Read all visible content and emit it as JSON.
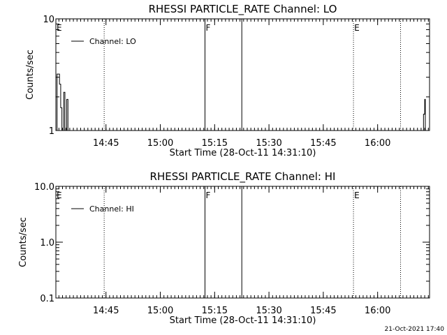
{
  "chart_data": [
    {
      "type": "line",
      "title": "RHESSI PARTICLE_RATE Channel: LO",
      "xlabel": "Start Time (28-Oct-11 14:31:10)",
      "ylabel": "Counts/sec",
      "xlim": [
        "14:31:10",
        "16:14:20"
      ],
      "ylim": [
        1,
        10
      ],
      "yscale": "log",
      "ytick_labels": [
        "1",
        "10"
      ],
      "xtick_labels": [
        "14:45",
        "15:00",
        "15:15",
        "15:30",
        "15:45",
        "16:00"
      ],
      "legend": "top-left",
      "series": [
        {
          "name": "Channel: LO",
          "x": [
            "14:31:10",
            "14:31:30",
            "14:31:50",
            "14:32:10",
            "14:32:30",
            "14:32:50",
            "14:33:10",
            "14:33:20",
            "14:33:40",
            "14:34:00",
            "14:34:10",
            "14:34:30",
            "14:34:50",
            "16:12:20",
            "16:12:40",
            "16:13:00",
            "16:13:10"
          ],
          "y": [
            1.0,
            3.2,
            3.2,
            2.6,
            1.6,
            1.0,
            1.0,
            2.2,
            1.0,
            1.0,
            1.9,
            1.0,
            1.0,
            1.0,
            1.4,
            1.9,
            1.0
          ]
        }
      ],
      "event_lines": [
        {
          "time": "14:31:10",
          "label": "E",
          "style": "dotted"
        },
        {
          "time": "14:44:30",
          "label": "",
          "style": "dotted"
        },
        {
          "time": "15:12:20",
          "label": "F",
          "style": "solid"
        },
        {
          "time": "15:22:30",
          "label": "",
          "style": "solid"
        },
        {
          "time": "15:53:20",
          "label": "E",
          "style": "dotted"
        },
        {
          "time": "16:06:20",
          "label": "",
          "style": "dotted"
        }
      ]
    },
    {
      "type": "line",
      "title": "RHESSI PARTICLE_RATE Channel: HI",
      "xlabel": "Start Time (28-Oct-11 14:31:10)",
      "ylabel": "Counts/sec",
      "xlim": [
        "14:31:10",
        "16:14:20"
      ],
      "ylim": [
        0.1,
        10
      ],
      "yscale": "log",
      "ytick_labels": [
        "0.1",
        "1.0",
        "10.0"
      ],
      "xtick_labels": [
        "14:45",
        "15:00",
        "15:15",
        "15:30",
        "15:45",
        "16:00"
      ],
      "legend": "top-left",
      "series": [
        {
          "name": "Channel: HI",
          "x": [],
          "y": []
        }
      ],
      "event_lines": [
        {
          "time": "14:31:10",
          "label": "E",
          "style": "dotted"
        },
        {
          "time": "14:44:30",
          "label": "",
          "style": "dotted"
        },
        {
          "time": "15:12:20",
          "label": "F",
          "style": "solid"
        },
        {
          "time": "15:22:30",
          "label": "",
          "style": "solid"
        },
        {
          "time": "15:53:20",
          "label": "E",
          "style": "dotted"
        },
        {
          "time": "16:06:20",
          "label": "",
          "style": "dotted"
        }
      ]
    }
  ],
  "footer": {
    "timestamp": "21-Oct-2021 17:40"
  }
}
